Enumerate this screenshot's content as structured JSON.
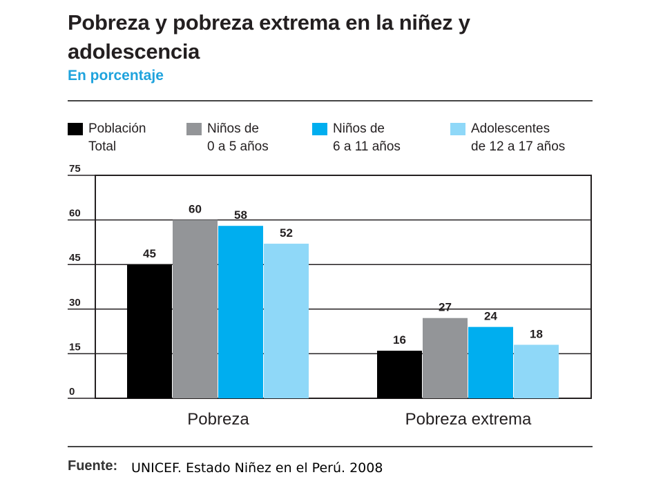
{
  "title": "Pobreza y pobreza extrema en la niñez y adolescencia",
  "subtitle": "En porcentaje",
  "source": {
    "label": "Fuente:",
    "text": "UNICEF.  Estado Niñez en el Perú. 2008"
  },
  "colors": {
    "grid": "#231f20",
    "text": "#231f20",
    "subtitle": "#1fa3dd"
  },
  "chart_data": {
    "type": "bar",
    "title": "Pobreza y pobreza extrema en la niñez y adolescencia",
    "subtitle": "En porcentaje",
    "categories": [
      "Pobreza",
      "Pobreza extrema"
    ],
    "series": [
      {
        "name": "Población\nTotal",
        "color": "#000000",
        "values": [
          45,
          16
        ]
      },
      {
        "name": "Niños de\n0 a 5 años",
        "color": "#939598",
        "values": [
          60,
          27
        ]
      },
      {
        "name": "Niños de\n6 a 11 años",
        "color": "#00aeef",
        "values": [
          58,
          24
        ]
      },
      {
        "name": "Adolescentes\nde 12 a 17 años",
        "color": "#8fd8f8",
        "values": [
          52,
          18
        ]
      }
    ],
    "yticks": [
      0,
      15,
      30,
      45,
      60,
      75
    ],
    "ylim": [
      0,
      75
    ],
    "grid": true,
    "legend": "top"
  }
}
